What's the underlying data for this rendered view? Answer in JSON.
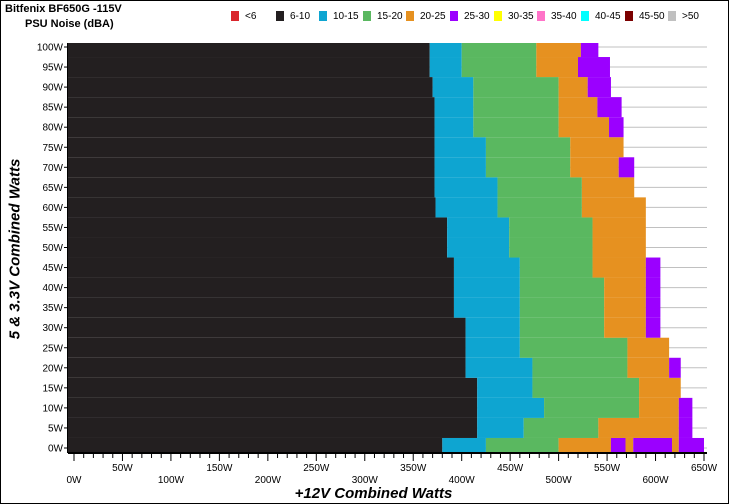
{
  "chart_data": {
    "type": "heatmap",
    "title": "Bitfenix BF650G -115V",
    "subtitle": "PSU Noise (dBA)",
    "xlabel": "+12V Combined Watts",
    "ylabel": "5 & 3.3V Combined Watts",
    "xlim": [
      0,
      650
    ],
    "ylim": [
      0,
      100
    ],
    "grid": "horizontal",
    "legend_position": "top",
    "legend": [
      {
        "label": "<6",
        "color": "#d9262c"
      },
      {
        "label": "6-10",
        "color": "#231f20"
      },
      {
        "label": "10-15",
        "color": "#0ea5d1"
      },
      {
        "label": "15-20",
        "color": "#5ab860"
      },
      {
        "label": "20-25",
        "color": "#e69120"
      },
      {
        "label": "25-30",
        "color": "#9b00ff"
      },
      {
        "label": "30-35",
        "color": "#ffff00"
      },
      {
        "label": "35-40",
        "color": "#ff73c8"
      },
      {
        "label": "40-45",
        "color": "#00ffff"
      },
      {
        "label": "45-50",
        "color": "#7b0000"
      },
      {
        "label": ">50",
        "color": "#c0c0c0"
      }
    ],
    "x_ticks": [
      "0W",
      "50W",
      "100W",
      "150W",
      "200W",
      "250W",
      "300W",
      "350W",
      "400W",
      "450W",
      "500W",
      "550W",
      "600W",
      "650W"
    ],
    "y_ticks": [
      "0W",
      "5W",
      "10W",
      "15W",
      "20W",
      "25W",
      "30W",
      "35W",
      "40W",
      "45W",
      "50W",
      "55W",
      "60W",
      "65W",
      "70W",
      "75W",
      "80W",
      "85W",
      "90W",
      "95W",
      "100W"
    ],
    "rows": [
      {
        "y": 0,
        "segments": [
          [
            "6-10",
            380
          ],
          [
            "10-15",
            425
          ],
          [
            "15-20",
            500
          ],
          [
            "20-25",
            554
          ],
          [
            "25-30",
            569
          ],
          [
            "20-25",
            577
          ],
          [
            "25-30",
            617
          ],
          [
            "20-25",
            624
          ],
          [
            "25-30",
            650
          ]
        ]
      },
      {
        "y": 5,
        "segments": [
          [
            "6-10",
            416
          ],
          [
            "10-15",
            464
          ],
          [
            "15-20",
            541
          ],
          [
            "20-25",
            624
          ],
          [
            "25-30",
            638
          ]
        ]
      },
      {
        "y": 10,
        "segments": [
          [
            "6-10",
            416
          ],
          [
            "10-15",
            485
          ],
          [
            "15-20",
            583
          ],
          [
            "20-25",
            624
          ],
          [
            "25-30",
            638
          ]
        ]
      },
      {
        "y": 15,
        "segments": [
          [
            "6-10",
            416
          ],
          [
            "10-15",
            473
          ],
          [
            "15-20",
            583
          ],
          [
            "20-25",
            626
          ]
        ]
      },
      {
        "y": 20,
        "segments": [
          [
            "6-10",
            404
          ],
          [
            "10-15",
            473
          ],
          [
            "15-20",
            571
          ],
          [
            "20-25",
            614
          ],
          [
            "25-30",
            626
          ]
        ]
      },
      {
        "y": 25,
        "segments": [
          [
            "6-10",
            404
          ],
          [
            "10-15",
            460
          ],
          [
            "15-20",
            571
          ],
          [
            "20-25",
            614
          ]
        ]
      },
      {
        "y": 30,
        "segments": [
          [
            "6-10",
            404
          ],
          [
            "10-15",
            460
          ],
          [
            "15-20",
            547
          ],
          [
            "20-25",
            590
          ],
          [
            "25-30",
            605
          ]
        ]
      },
      {
        "y": 35,
        "segments": [
          [
            "6-10",
            392
          ],
          [
            "10-15",
            460
          ],
          [
            "15-20",
            547
          ],
          [
            "20-25",
            590
          ],
          [
            "25-30",
            605
          ]
        ]
      },
      {
        "y": 40,
        "segments": [
          [
            "6-10",
            392
          ],
          [
            "10-15",
            460
          ],
          [
            "15-20",
            547
          ],
          [
            "20-25",
            590
          ],
          [
            "25-30",
            605
          ]
        ]
      },
      {
        "y": 45,
        "segments": [
          [
            "6-10",
            392
          ],
          [
            "10-15",
            460
          ],
          [
            "15-20",
            535
          ],
          [
            "20-25",
            590
          ],
          [
            "25-30",
            605
          ]
        ]
      },
      {
        "y": 50,
        "segments": [
          [
            "6-10",
            385
          ],
          [
            "10-15",
            449
          ],
          [
            "15-20",
            535
          ],
          [
            "20-25",
            590
          ]
        ]
      },
      {
        "y": 55,
        "segments": [
          [
            "6-10",
            385
          ],
          [
            "10-15",
            449
          ],
          [
            "15-20",
            535
          ],
          [
            "20-25",
            590
          ]
        ]
      },
      {
        "y": 60,
        "segments": [
          [
            "6-10",
            373
          ],
          [
            "10-15",
            437
          ],
          [
            "15-20",
            524
          ],
          [
            "20-25",
            590
          ]
        ]
      },
      {
        "y": 65,
        "segments": [
          [
            "6-10",
            372
          ],
          [
            "10-15",
            437
          ],
          [
            "15-20",
            524
          ],
          [
            "20-25",
            578
          ]
        ]
      },
      {
        "y": 70,
        "segments": [
          [
            "6-10",
            372
          ],
          [
            "10-15",
            425
          ],
          [
            "15-20",
            512
          ],
          [
            "20-25",
            562
          ],
          [
            "25-30",
            578
          ]
        ]
      },
      {
        "y": 75,
        "segments": [
          [
            "6-10",
            372
          ],
          [
            "10-15",
            425
          ],
          [
            "15-20",
            512
          ],
          [
            "20-25",
            567
          ]
        ]
      },
      {
        "y": 80,
        "segments": [
          [
            "6-10",
            372
          ],
          [
            "10-15",
            412
          ],
          [
            "15-20",
            500
          ],
          [
            "20-25",
            552
          ],
          [
            "25-30",
            567
          ]
        ]
      },
      {
        "y": 85,
        "segments": [
          [
            "6-10",
            372
          ],
          [
            "10-15",
            412
          ],
          [
            "15-20",
            500
          ],
          [
            "20-25",
            540
          ],
          [
            "25-30",
            565
          ]
        ]
      },
      {
        "y": 90,
        "segments": [
          [
            "6-10",
            370
          ],
          [
            "10-15",
            412
          ],
          [
            "15-20",
            500
          ],
          [
            "20-25",
            530
          ],
          [
            "25-30",
            554
          ]
        ]
      },
      {
        "y": 95,
        "segments": [
          [
            "6-10",
            367
          ],
          [
            "10-15",
            400
          ],
          [
            "15-20",
            477
          ],
          [
            "20-25",
            520
          ],
          [
            "25-30",
            553
          ]
        ]
      },
      {
        "y": 100,
        "segments": [
          [
            "6-10",
            367
          ],
          [
            "10-15",
            400
          ],
          [
            "15-20",
            477
          ],
          [
            "20-25",
            523
          ],
          [
            "25-30",
            541
          ]
        ]
      }
    ]
  }
}
